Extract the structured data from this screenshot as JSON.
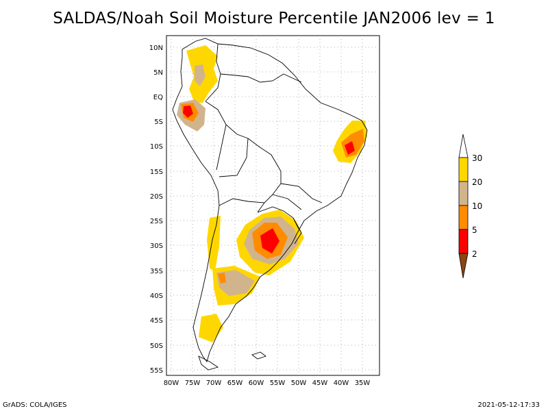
{
  "title": "SALDAS/Noah Soil Moisture Percentile JAN2006 lev = 1",
  "footer": {
    "left": "GrADS: COLA/IGES",
    "right": "2021-05-12-17:33"
  },
  "map": {
    "lat_labels": [
      "10N",
      "5N",
      "EQ",
      "5S",
      "10S",
      "15S",
      "20S",
      "25S",
      "30S",
      "35S",
      "40S",
      "45S",
      "50S",
      "55S"
    ],
    "lon_labels": [
      "80W",
      "75W",
      "70W",
      "65W",
      "60W",
      "55W",
      "50W",
      "45W",
      "40W",
      "35W"
    ],
    "grid": true
  },
  "colorbar": {
    "labels": [
      "30",
      "20",
      "10",
      "5",
      "2"
    ],
    "colors": {
      "above30": "#ffffff",
      "c20_30": "#ffd700",
      "c10_20": "#d2b48c",
      "c5_10": "#ff8c00",
      "c2_5": "#ff0000",
      "below2": "#8b4513"
    }
  }
}
